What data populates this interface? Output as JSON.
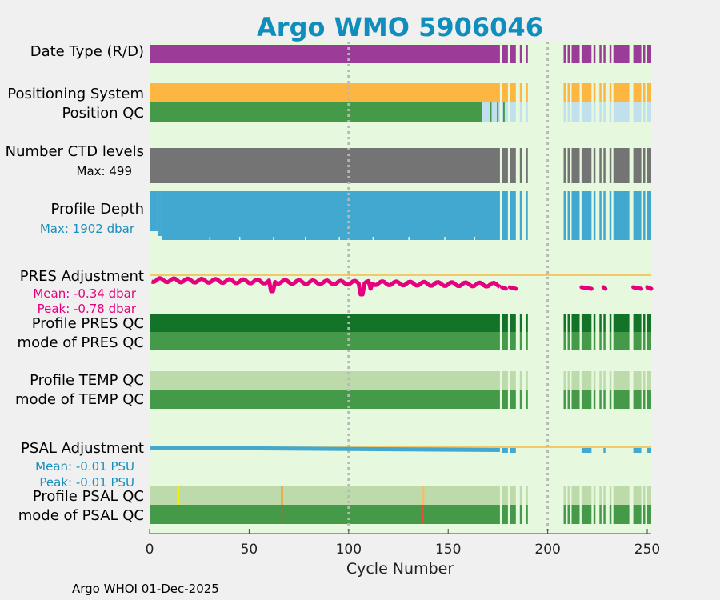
{
  "chart_data": {
    "type": "timeline",
    "title": "Argo WMO 5906046",
    "xlabel": "Cycle Number",
    "xlim": [
      0,
      252
    ],
    "xticks": [
      "0",
      "50",
      "100",
      "150",
      "200",
      "250"
    ],
    "footer": "Argo WHOI 01-Dec-2025",
    "reference_lines_at_cycle": [
      100,
      200
    ],
    "cycle_segments": [
      [
        0,
        176
      ],
      [
        177,
        180
      ],
      [
        181,
        184
      ],
      [
        186,
        187
      ],
      [
        189,
        190
      ],
      [
        208,
        209
      ],
      [
        210,
        211
      ],
      [
        212,
        216
      ],
      [
        217,
        222
      ],
      [
        223,
        224
      ],
      [
        226,
        227
      ],
      [
        228,
        229
      ],
      [
        231,
        232
      ],
      [
        233,
        241
      ],
      [
        243,
        247
      ],
      [
        248,
        249
      ],
      [
        250,
        252
      ]
    ],
    "rows": [
      {
        "label": "Date Type (R/D)",
        "color": "#9b3d98"
      },
      {
        "label": "Positioning System",
        "color": "#fdb642"
      },
      {
        "label": "Position QC",
        "color": "#449a48",
        "alt_color": "#c1e0ee",
        "note": "good through cycle ~167"
      },
      {
        "label": "Number CTD levels",
        "sublabel": "Max: 499",
        "color": "#747474"
      },
      {
        "label": "Profile Depth",
        "sublabel": "Max: 1902 dbar",
        "color": "#42a8cf",
        "max_depth_dbar": 1902
      },
      {
        "label": "PRES Adjustment",
        "sublabel1": "Mean: -0.34 dbar",
        "sublabel2": "Peak: -0.78 dbar",
        "color": "#e6007e",
        "mean_dbar": -0.34,
        "peak_dbar": -0.78
      },
      {
        "label": "Profile PRES QC",
        "color": "#137329"
      },
      {
        "label": "mode of PRES QC",
        "color": "#449a48"
      },
      {
        "label": "Profile TEMP QC",
        "color": "#bcdaaa"
      },
      {
        "label": "mode of TEMP QC",
        "color": "#449a48"
      },
      {
        "label": "PSAL Adjustment",
        "sublabel1": "Mean: -0.01 PSU",
        "sublabel2": "Peak: -0.01 PSU",
        "color": "#42a8cf",
        "mean_psu": -0.01,
        "peak_psu": -0.01
      },
      {
        "label": "Profile PSAL QC",
        "color": "#bcdaaa",
        "flags": [
          {
            "cycle": 14,
            "color": "#f2f200"
          },
          {
            "cycle": 66,
            "color": "#f0a030"
          },
          {
            "cycle": 137,
            "color": "#f0c070"
          }
        ]
      },
      {
        "label": "mode of PSAL QC",
        "color": "#449a48",
        "flags": [
          {
            "cycle": 66,
            "color": "#e8512f"
          },
          {
            "cycle": 137,
            "color": "#e8512f"
          }
        ]
      }
    ],
    "colors": {
      "background": "#e6f8de",
      "reference_line": "#b8b8b8",
      "zero_line": "#f5b942",
      "title": "#0f8ebc",
      "sublabel_pink": "#e6007e",
      "sublabel_blue": "#1a8ebc"
    }
  }
}
